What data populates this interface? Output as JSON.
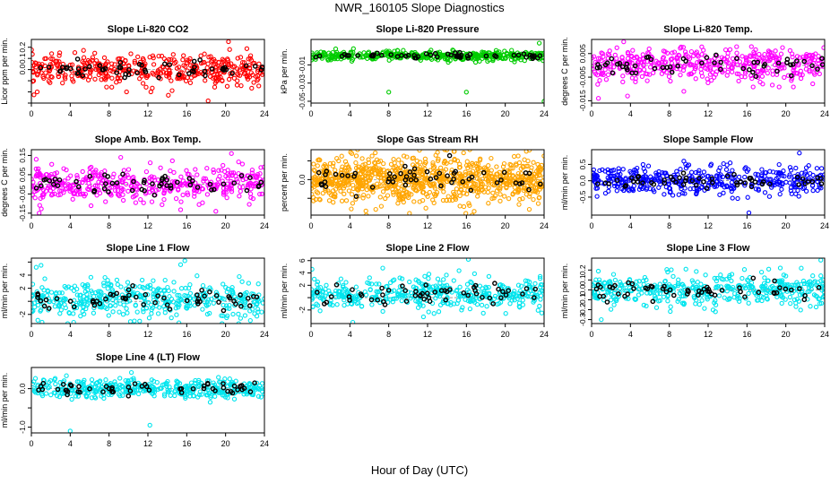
{
  "page": {
    "title": "NWR_160105  Slope Diagnostics",
    "xlabel": "Hour of Day (UTC)"
  },
  "chart_data": [
    {
      "type": "scatter",
      "title": "Slope Li-820 CO2",
      "ylabel": "Licor ppm per min.",
      "color": "#ff0000",
      "xlim": [
        0,
        24
      ],
      "xticks": [
        0,
        4,
        8,
        12,
        16,
        20,
        24
      ],
      "ylim": [
        -0.3,
        0.27
      ],
      "yticks": [
        -0.3,
        -0.2,
        -0.1,
        0.0,
        0.1,
        0.2
      ],
      "ytick_labels": [
        "",
        "",
        "",
        "0.0",
        "0.1",
        "0.2"
      ],
      "center": 0.0,
      "spread": 0.065,
      "outliers": [
        [
          0.6,
          -0.2
        ],
        [
          9.8,
          -0.2
        ],
        [
          12.3,
          -0.2
        ],
        [
          14.1,
          -0.23
        ],
        [
          18.2,
          -0.28
        ],
        [
          20.3,
          0.25
        ],
        [
          3.2,
          -0.12
        ]
      ]
    },
    {
      "type": "scatter",
      "title": "Slope Li-820 Pressure",
      "ylabel": "kPa per min.",
      "color": "#00cc00",
      "xlim": [
        0,
        24
      ],
      "xticks": [
        0,
        4,
        8,
        12,
        16,
        20,
        24
      ],
      "ylim": [
        -0.052,
        0.018
      ],
      "yticks": [
        -0.05,
        -0.03,
        -0.01
      ],
      "ytick_labels": [
        "-0.05",
        "-0.03",
        "-0.01"
      ],
      "center": 0.0,
      "spread": 0.0025,
      "outliers": [
        [
          8,
          -0.04
        ],
        [
          16,
          -0.04
        ],
        [
          24,
          -0.05
        ],
        [
          23.5,
          0.014
        ],
        [
          9.5,
          0.006
        ],
        [
          4.2,
          -0.006
        ]
      ]
    },
    {
      "type": "scatter",
      "title": "Slope Li-820 Temp.",
      "ylabel": "degrees C per min.",
      "color": "#ff00ff",
      "xlim": [
        0,
        24
      ],
      "xticks": [
        0,
        4,
        8,
        12,
        16,
        20,
        24
      ],
      "ylim": [
        -0.016,
        0.011
      ],
      "yticks": [
        -0.015,
        -0.005,
        0.005
      ],
      "ytick_labels": [
        "-0.015",
        "-0.005",
        "0.005"
      ],
      "center": 0.0,
      "spread": 0.0035,
      "outliers": [
        [
          3.3,
          0.01
        ],
        [
          0.7,
          -0.014
        ],
        [
          3.7,
          -0.013
        ],
        [
          9.5,
          -0.011
        ]
      ]
    },
    {
      "type": "scatter",
      "title": "Slope Amb. Box Temp.",
      "ylabel": "degrees C per min.",
      "color": "#ff00ff",
      "xlim": [
        0,
        24
      ],
      "xticks": [
        0,
        4,
        8,
        12,
        16,
        20,
        24
      ],
      "ylim": [
        -0.16,
        0.18
      ],
      "yticks": [
        -0.15,
        -0.05,
        0.05,
        0.15
      ],
      "ytick_labels": [
        "-0.15",
        "-0.05",
        "0.05",
        "0.15"
      ],
      "center": 0.0,
      "spread": 0.045,
      "outliers": [
        [
          20.6,
          0.16
        ],
        [
          19,
          -0.14
        ],
        [
          9.2,
          0.14
        ],
        [
          0.5,
          0.13
        ]
      ]
    },
    {
      "type": "scatter",
      "title": "Slope Gas Stream RH",
      "ylabel": "percent per min.",
      "color": "#ffa500",
      "xlim": [
        0,
        24
      ],
      "xticks": [
        0,
        4,
        8,
        12,
        16,
        20,
        24
      ],
      "ylim": [
        -1.9,
        1.6
      ],
      "yticks": [
        -1,
        0,
        1
      ],
      "ytick_labels": [
        "",
        "0.0",
        ""
      ],
      "center": 0.0,
      "spread": 0.6,
      "dense": true,
      "outliers": [
        [
          4.2,
          1.4
        ],
        [
          16.8,
          -1.7
        ]
      ]
    },
    {
      "type": "scatter",
      "title": "Slope Sample Flow",
      "ylabel": "ml/min per min.",
      "color": "#0000ff",
      "xlim": [
        0,
        24
      ],
      "xticks": [
        0,
        4,
        8,
        12,
        16,
        20,
        24
      ],
      "ylim": [
        -1.05,
        0.95
      ],
      "yticks": [
        -0.5,
        0.0,
        0.5
      ],
      "ytick_labels": [
        "-0.5",
        "0.0",
        "0.5"
      ],
      "center": 0.0,
      "spread": 0.22,
      "outliers": [
        [
          16.2,
          -0.98
        ],
        [
          21.4,
          0.85
        ],
        [
          9.5,
          0.6
        ]
      ]
    },
    {
      "type": "scatter",
      "title": "Slope Line 1 Flow",
      "ylabel": "ml/min per min.",
      "color": "#00e5ee",
      "xlim": [
        0,
        24
      ],
      "xticks": [
        0,
        4,
        8,
        12,
        16,
        20,
        24
      ],
      "ylim": [
        -3.4,
        6.6
      ],
      "yticks": [
        -2,
        0,
        2,
        4,
        6
      ],
      "ytick_labels": [
        "-2",
        "",
        "2",
        "4",
        ""
      ],
      "center": 0.3,
      "spread": 1.4,
      "outliers": [
        [
          0.5,
          5.2
        ],
        [
          1,
          5.5
        ],
        [
          15.8,
          6.2
        ],
        [
          10.2,
          -3.1
        ],
        [
          1.1,
          -3.2
        ]
      ]
    },
    {
      "type": "scatter",
      "title": "Slope Line 2 Flow",
      "ylabel": "ml/min per min.",
      "color": "#00e5ee",
      "xlim": [
        0,
        24
      ],
      "xticks": [
        0,
        4,
        8,
        12,
        16,
        20,
        24
      ],
      "ylim": [
        -4.2,
        6.4
      ],
      "yticks": [
        -2,
        0,
        2,
        4,
        6
      ],
      "ytick_labels": [
        "-2",
        "",
        "2",
        "4",
        "6"
      ],
      "center": 0.5,
      "spread": 1.3,
      "outliers": [
        [
          16.2,
          6.2
        ],
        [
          4.3,
          -4.0
        ],
        [
          0.1,
          4.6
        ]
      ]
    },
    {
      "type": "scatter",
      "title": "Slope Line 3 Flow",
      "ylabel": "ml/min per min.",
      "color": "#00e5ee",
      "xlim": [
        0,
        24
      ],
      "xticks": [
        0,
        4,
        8,
        12,
        16,
        20,
        24
      ],
      "ylim": [
        -0.34,
        0.32
      ],
      "yticks": [
        -0.3,
        -0.2,
        -0.1,
        0.0,
        0.1,
        0.2
      ],
      "ytick_labels": [
        "-0.3",
        "-0.2",
        "-0.1",
        "0.0",
        "0.1",
        "0.2"
      ],
      "center": 0.0,
      "spread": 0.08,
      "outliers": [
        [
          23.6,
          0.3
        ],
        [
          1,
          -0.3
        ]
      ]
    },
    {
      "type": "scatter",
      "title": "Slope Line 4 (LT) Flow",
      "ylabel": "ml/min per min.",
      "color": "#00e5ee",
      "xlim": [
        0,
        24
      ],
      "xticks": [
        0,
        4,
        8,
        12,
        16,
        20,
        24
      ],
      "ylim": [
        -1.15,
        0.55
      ],
      "yticks": [
        -1.0,
        -0.5,
        0.0
      ],
      "ytick_labels": [
        "-1.0",
        "",
        "0.0"
      ],
      "center": 0.0,
      "spread": 0.12,
      "outliers": [
        [
          4,
          -1.1
        ],
        [
          12.2,
          -0.95
        ],
        [
          10.3,
          0.42
        ]
      ]
    }
  ]
}
